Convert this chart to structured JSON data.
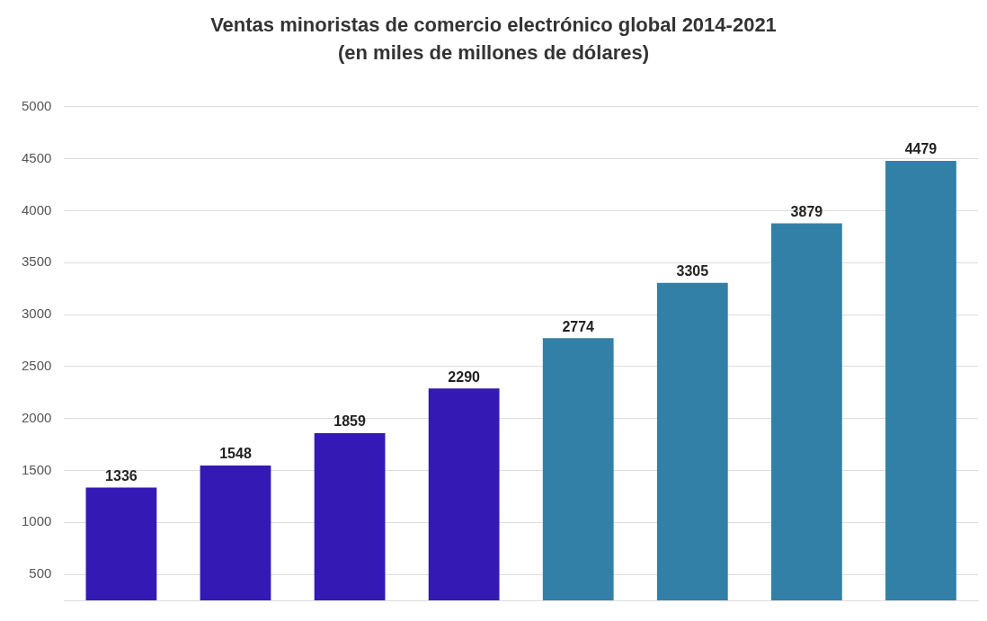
{
  "chart_data": {
    "type": "bar",
    "title": "Ventas minoristas de comercio electrónico global 2014-2021",
    "subtitle": "(en miles de millones de dólares)",
    "categories": [
      null,
      null,
      null,
      null,
      null,
      null,
      null,
      null
    ],
    "values": [
      1336,
      1548,
      1859,
      2290,
      2774,
      3305,
      3879,
      4479
    ],
    "colors": [
      "#3419b5",
      "#3419b5",
      "#3419b5",
      "#3419b5",
      "#3280a8",
      "#3280a8",
      "#3280a8",
      "#3280a8"
    ],
    "ylim": [
      250,
      5000
    ],
    "yticks": [
      500,
      1000,
      1500,
      2000,
      2500,
      3000,
      3500,
      4000,
      4500,
      5000
    ],
    "grid": "y",
    "data_labels": true
  }
}
